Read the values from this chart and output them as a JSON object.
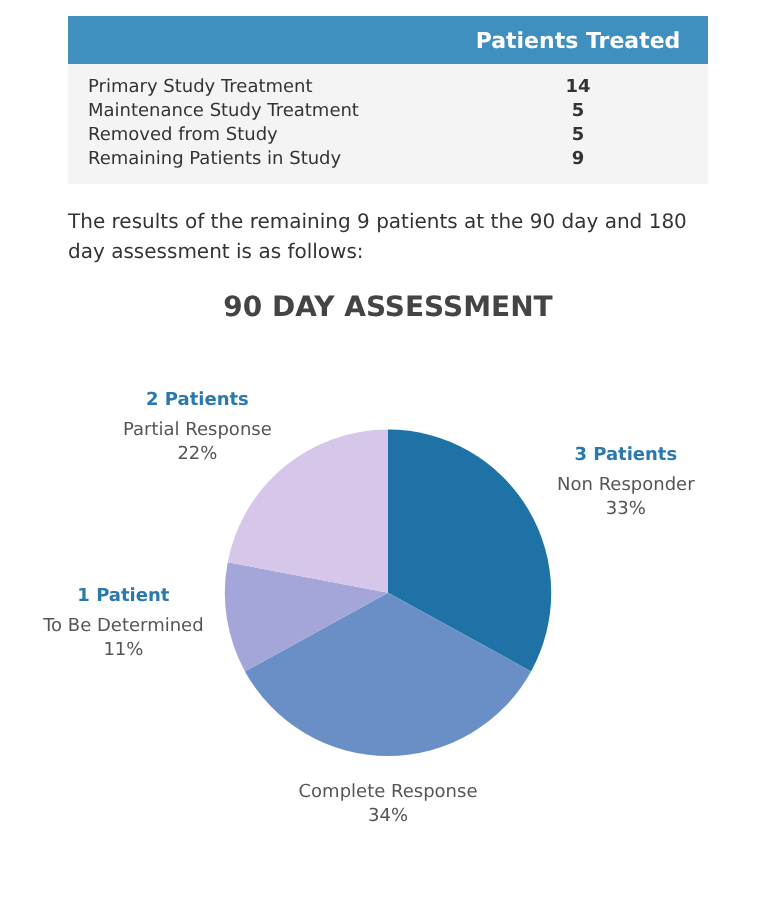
{
  "chart_data": [
    {
      "type": "other",
      "title": "Patients Treated",
      "categories": [
        "Primary Study Treatment",
        "Maintenance Study Treatment",
        "Removed from Study",
        "Remaining Patients in Study"
      ],
      "values": [
        14,
        5,
        5,
        9
      ],
      "data_labels": true,
      "annotations": [
        "The results of the remaining 9 patients at the 90 day and 180 day assessment is as follows:"
      ]
    },
    {
      "type": "pie",
      "title": "90 DAY ASSESSMENT",
      "categories": [
        "Non Responder",
        "Complete Response",
        "To Be Determined",
        "Partial Response"
      ],
      "values": [
        33,
        34,
        11,
        22
      ],
      "colors": [
        "#1f72a6",
        "#6a8fc6",
        "#a4a5d8",
        "#d6c6ea"
      ],
      "value_labels": [
        "33%",
        "34%",
        "11%",
        "22%"
      ],
      "legend": false,
      "annotations": [
        {
          "text": "3 Patients",
          "x": "Non Responder"
        },
        {
          "text": "1 Patient",
          "x": "To Be Determined"
        },
        {
          "text": "2 Patients",
          "x": "Partial Response"
        }
      ]
    }
  ]
}
